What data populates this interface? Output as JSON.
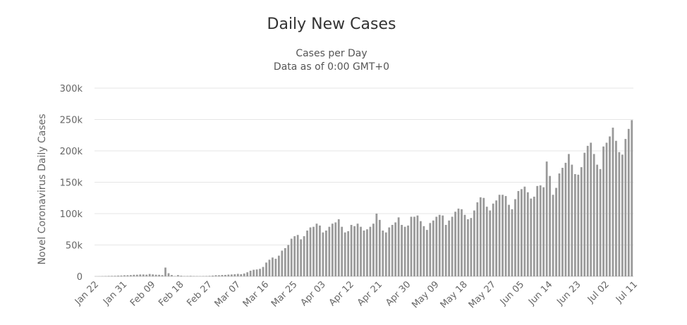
{
  "chart_data": {
    "type": "bar",
    "title": "Daily New Cases",
    "subtitle_lines": [
      "Cases per Day",
      "Data as of 0:00 GMT+0"
    ],
    "xlabel": "",
    "ylabel": "Novel Coronavirus Daily Cases",
    "ylim": [
      0,
      300000
    ],
    "y_ticks": [
      0,
      50000,
      100000,
      150000,
      200000,
      250000,
      300000
    ],
    "y_tick_labels": [
      "0",
      "50k",
      "100k",
      "150k",
      "200k",
      "250k",
      "300k"
    ],
    "x_tick_labels": [
      "Jan 22",
      "Jan 31",
      "Feb 09",
      "Feb 18",
      "Feb 27",
      "Mar 07",
      "Mar 16",
      "Mar 25",
      "Apr 03",
      "Apr 12",
      "Apr 21",
      "Apr 30",
      "May 09",
      "May 18",
      "May 27",
      "Jun 05",
      "Jun 14",
      "Jun 23",
      "Jul 02",
      "Jul 11"
    ],
    "x_tick_every_days": 9,
    "grid": true,
    "bar_color": "#999999",
    "series": [
      {
        "values": [
          0,
          100,
          300,
          500,
          700,
          800,
          900,
          1200,
          1300,
          1700,
          1800,
          2000,
          2500,
          2600,
          3000,
          3000,
          2700,
          3800,
          3100,
          2600,
          2500,
          2000,
          14000,
          5000,
          2100,
          500,
          2000,
          1000,
          500,
          600,
          800,
          500,
          400,
          300,
          500,
          600,
          800,
          1200,
          1800,
          1800,
          2200,
          2300,
          2800,
          3000,
          3400,
          4000,
          3500,
          4500,
          6500,
          9000,
          10500,
          11000,
          12000,
          15000,
          22000,
          26500,
          30000,
          28000,
          33000,
          41000,
          45000,
          50000,
          60000,
          64000,
          66000,
          59000,
          64000,
          73000,
          78000,
          79000,
          84000,
          81000,
          70000,
          73000,
          79000,
          84000,
          86000,
          91000,
          79000,
          70000,
          72000,
          82000,
          80000,
          84000,
          79000,
          73000,
          75000,
          79000,
          84000,
          100000,
          90000,
          73000,
          70000,
          78000,
          82000,
          86000,
          94000,
          82000,
          79000,
          81000,
          95000,
          95000,
          97000,
          88000,
          80000,
          74000,
          85000,
          89000,
          95000,
          98000,
          97000,
          82000,
          89000,
          95000,
          103000,
          108000,
          107000,
          98000,
          91000,
          93000,
          105000,
          118000,
          126000,
          125000,
          111000,
          105000,
          116000,
          121000,
          130000,
          130000,
          128000,
          114000,
          107000,
          123000,
          136000,
          139000,
          143000,
          134000,
          124000,
          127000,
          144000,
          145000,
          142000,
          183000,
          160000,
          130000,
          141000,
          164000,
          173000,
          181000,
          195000,
          178000,
          163000,
          162000,
          174000,
          197000,
          208000,
          213000,
          195000,
          178000,
          171000,
          207000,
          213000,
          223000,
          237000,
          216000,
          198000,
          194000,
          219000,
          235000,
          249000
        ]
      }
    ]
  }
}
